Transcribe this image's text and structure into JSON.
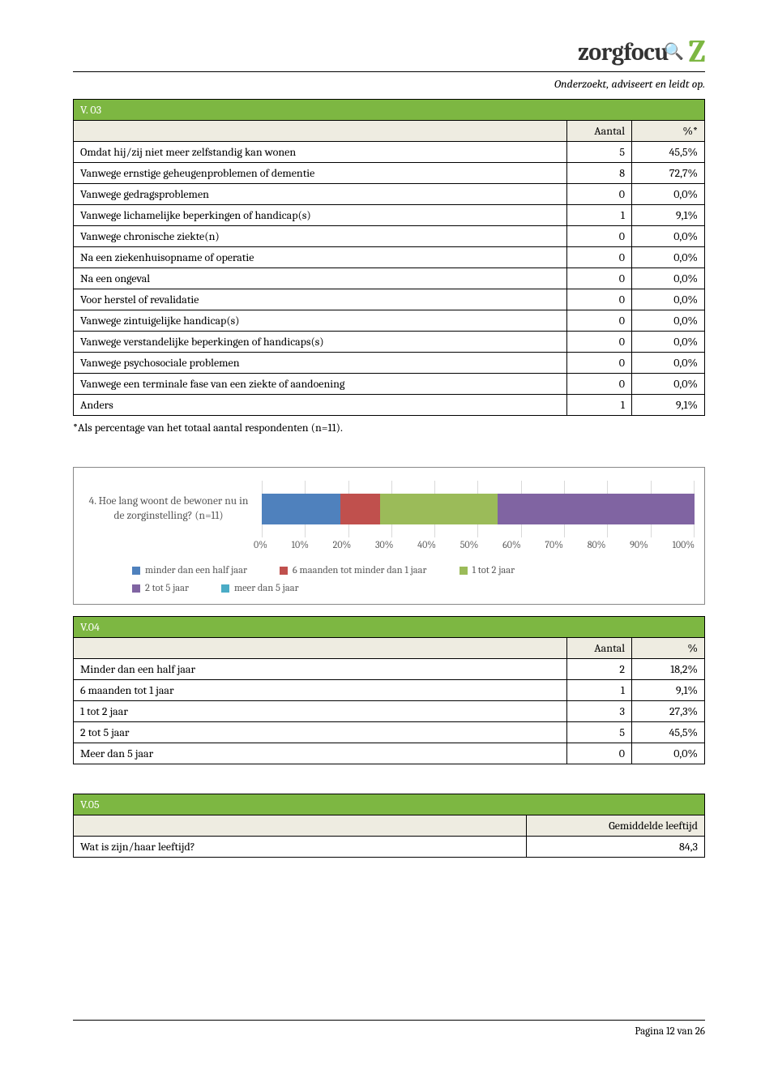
{
  "brand": {
    "name_part1": "zorgfocu",
    "name_part2": "Z",
    "tagline": "Onderzoekt, adviseert en leidt op."
  },
  "colors": {
    "green": "#7db742",
    "header_bg": "#eeece1",
    "blue": "#4f81bd",
    "red": "#c0504d",
    "olive": "#9bbb59",
    "purple": "#8064a2",
    "teal": "#4bacc6",
    "grid": "#d9d9d9",
    "axis_text": "#595959"
  },
  "table_v03": {
    "title": "V. 03",
    "col_aantal": "Aantal",
    "col_pct": "%*",
    "rows": [
      {
        "label": "Omdat hij/zij niet meer zelfstandig kan wonen",
        "aantal": "5",
        "pct": "45,5%"
      },
      {
        "label": "Vanwege ernstige geheugenproblemen of dementie",
        "aantal": "8",
        "pct": "72,7%"
      },
      {
        "label": "Vanwege gedragsproblemen",
        "aantal": "0",
        "pct": "0,0%"
      },
      {
        "label": "Vanwege lichamelijke beperkingen of handicap(s)",
        "aantal": "1",
        "pct": "9,1%"
      },
      {
        "label": "Vanwege chronische ziekte(n)",
        "aantal": "0",
        "pct": "0,0%"
      },
      {
        "label": "Na een ziekenhuisopname of operatie",
        "aantal": "0",
        "pct": "0,0%"
      },
      {
        "label": "Na een ongeval",
        "aantal": "0",
        "pct": "0,0%"
      },
      {
        "label": "Voor herstel of revalidatie",
        "aantal": "0",
        "pct": "0,0%"
      },
      {
        "label": "Vanwege zintuigelijke handicap(s)",
        "aantal": "0",
        "pct": "0,0%"
      },
      {
        "label": "Vanwege verstandelijke beperkingen of handicaps(s)",
        "aantal": "0",
        "pct": "0,0%"
      },
      {
        "label": "Vanwege psychosociale problemen",
        "aantal": "0",
        "pct": "0,0%"
      },
      {
        "label": "Vanwege een terminale fase van een ziekte of aandoening",
        "aantal": "0",
        "pct": "0,0%"
      },
      {
        "label": "Anders",
        "aantal": "1",
        "pct": "9,1%"
      }
    ],
    "footnote": "*Als percentage van het totaal aantal respondenten (n=11)."
  },
  "chart": {
    "question": "4. Hoe lang woont de bewoner nu in de zorginstelling? (n=11)",
    "type": "stacked-bar-horizontal",
    "axis_ticks": [
      "0%",
      "10%",
      "20%",
      "30%",
      "40%",
      "50%",
      "60%",
      "70%",
      "80%",
      "90%",
      "100%"
    ],
    "segments": [
      {
        "label": "minder dan een half jaar",
        "pct": 18.2,
        "color": "#4f81bd"
      },
      {
        "label": "6 maanden tot minder dan 1 jaar",
        "pct": 9.1,
        "color": "#c0504d"
      },
      {
        "label": "1 tot 2 jaar",
        "pct": 27.3,
        "color": "#9bbb59"
      },
      {
        "label": "2 tot 5 jaar",
        "pct": 45.5,
        "color": "#8064a2"
      },
      {
        "label": "meer dan 5 jaar",
        "pct": 0.0,
        "color": "#4bacc6"
      }
    ]
  },
  "table_v04": {
    "title": "V.04",
    "col_aantal": "Aantal",
    "col_pct": "%",
    "rows": [
      {
        "label": "Minder dan een half jaar",
        "aantal": "2",
        "pct": "18,2%"
      },
      {
        "label": "6 maanden tot 1 jaar",
        "aantal": "1",
        "pct": "9,1%"
      },
      {
        "label": "1 tot 2 jaar",
        "aantal": "3",
        "pct": "27,3%"
      },
      {
        "label": "2 tot 5 jaar",
        "aantal": "5",
        "pct": "45,5%"
      },
      {
        "label": "Meer dan 5 jaar",
        "aantal": "0",
        "pct": "0,0%"
      }
    ]
  },
  "table_v05": {
    "title": "V.05",
    "col_right": "Gemiddelde leeftijd",
    "rows": [
      {
        "label": "Wat is zijn/haar leeftijd?",
        "val": "84,3"
      }
    ]
  },
  "footer": "Pagina 12 van 26"
}
